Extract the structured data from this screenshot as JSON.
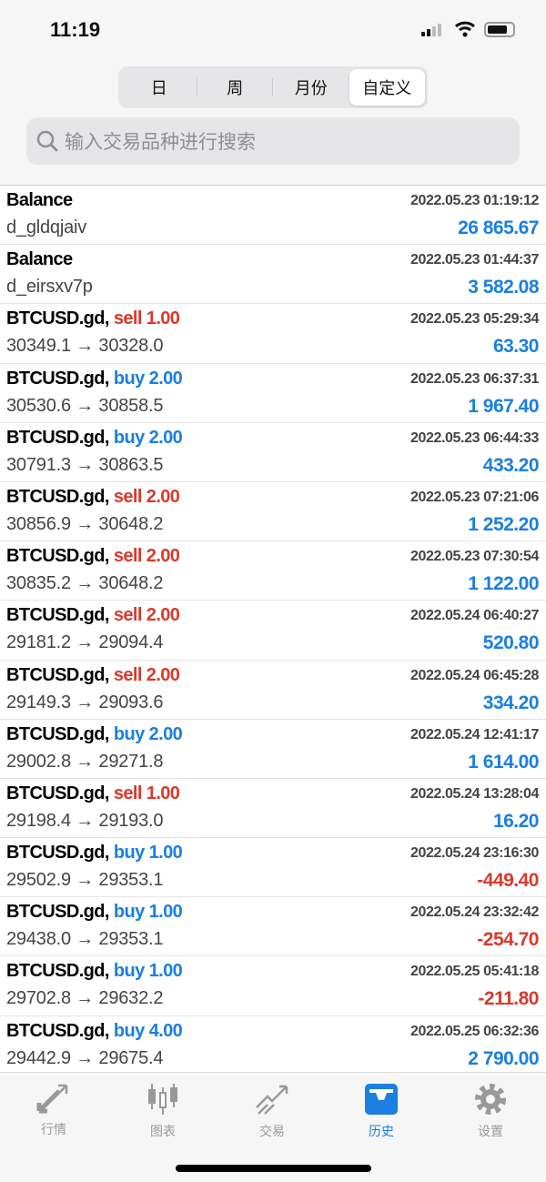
{
  "status": {
    "time": "11:19"
  },
  "segments": [
    {
      "label": "日"
    },
    {
      "label": "周"
    },
    {
      "label": "月份"
    },
    {
      "label": "自定义",
      "selected": true
    }
  ],
  "search": {
    "placeholder": "输入交易品种进行搜索"
  },
  "rows": [
    {
      "title": "Balance",
      "side": "",
      "volume": "",
      "detail": "d_gldqjaiv",
      "time": "2022.05.23 01:19:12",
      "profit": "26 865.67",
      "negative": false
    },
    {
      "title": "Balance",
      "side": "",
      "volume": "",
      "detail": "d_eirsxv7p",
      "time": "2022.05.23 01:44:37",
      "profit": "3 582.08",
      "negative": false
    },
    {
      "title": "BTCUSD.gd,",
      "side": "sell",
      "volume": "1.00",
      "detail": "30349.1 → 30328.0",
      "time": "2022.05.23 05:29:34",
      "profit": "63.30",
      "negative": false
    },
    {
      "title": "BTCUSD.gd,",
      "side": "buy",
      "volume": "2.00",
      "detail": "30530.6 → 30858.5",
      "time": "2022.05.23 06:37:31",
      "profit": "1 967.40",
      "negative": false
    },
    {
      "title": "BTCUSD.gd,",
      "side": "buy",
      "volume": "2.00",
      "detail": "30791.3 → 30863.5",
      "time": "2022.05.23 06:44:33",
      "profit": "433.20",
      "negative": false
    },
    {
      "title": "BTCUSD.gd,",
      "side": "sell",
      "volume": "2.00",
      "detail": "30856.9 → 30648.2",
      "time": "2022.05.23 07:21:06",
      "profit": "1 252.20",
      "negative": false
    },
    {
      "title": "BTCUSD.gd,",
      "side": "sell",
      "volume": "2.00",
      "detail": "30835.2 → 30648.2",
      "time": "2022.05.23 07:30:54",
      "profit": "1 122.00",
      "negative": false
    },
    {
      "title": "BTCUSD.gd,",
      "side": "sell",
      "volume": "2.00",
      "detail": "29181.2 → 29094.4",
      "time": "2022.05.24 06:40:27",
      "profit": "520.80",
      "negative": false
    },
    {
      "title": "BTCUSD.gd,",
      "side": "sell",
      "volume": "2.00",
      "detail": "29149.3 → 29093.6",
      "time": "2022.05.24 06:45:28",
      "profit": "334.20",
      "negative": false
    },
    {
      "title": "BTCUSD.gd,",
      "side": "buy",
      "volume": "2.00",
      "detail": "29002.8 → 29271.8",
      "time": "2022.05.24 12:41:17",
      "profit": "1 614.00",
      "negative": false
    },
    {
      "title": "BTCUSD.gd,",
      "side": "sell",
      "volume": "1.00",
      "detail": "29198.4 → 29193.0",
      "time": "2022.05.24 13:28:04",
      "profit": "16.20",
      "negative": false
    },
    {
      "title": "BTCUSD.gd,",
      "side": "buy",
      "volume": "1.00",
      "detail": "29502.9 → 29353.1",
      "time": "2022.05.24 23:16:30",
      "profit": "-449.40",
      "negative": true
    },
    {
      "title": "BTCUSD.gd,",
      "side": "buy",
      "volume": "1.00",
      "detail": "29438.0 → 29353.1",
      "time": "2022.05.24 23:32:42",
      "profit": "-254.70",
      "negative": true
    },
    {
      "title": "BTCUSD.gd,",
      "side": "buy",
      "volume": "1.00",
      "detail": "29702.8 → 29632.2",
      "time": "2022.05.25 05:41:18",
      "profit": "-211.80",
      "negative": true
    },
    {
      "title": "BTCUSD.gd,",
      "side": "buy",
      "volume": "4.00",
      "detail": "29442.9 → 29675.4",
      "time": "2022.05.25 06:32:36",
      "profit": "2 790.00",
      "negative": false
    }
  ],
  "tabs": [
    {
      "label": "行情",
      "icon": "quotes-arrows-icon"
    },
    {
      "label": "图表",
      "icon": "candlestick-icon"
    },
    {
      "label": "交易",
      "icon": "trade-trend-icon"
    },
    {
      "label": "历史",
      "icon": "inbox-history-icon",
      "active": true
    },
    {
      "label": "设置",
      "icon": "gear-icon"
    }
  ],
  "colors": {
    "accent": "#1a7fe0",
    "negative": "#d93a2b"
  }
}
